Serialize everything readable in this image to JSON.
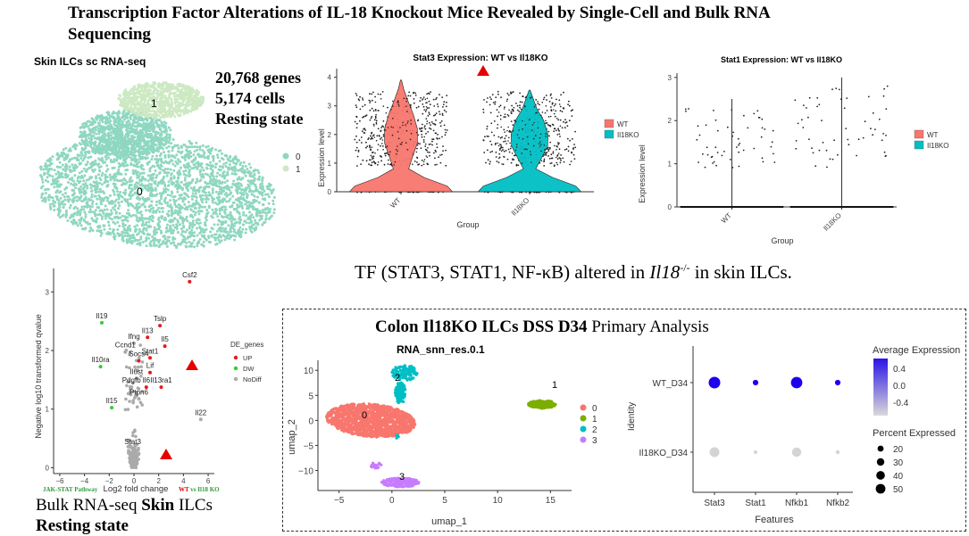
{
  "title": "Transcription Factor Alterations of IL-18 Knockout Mice Revealed by Single-Cell and Bulk RNA Sequencing",
  "umap_skin": {
    "title": "Skin ILCs sc RNA-seq",
    "cluster_labels": [
      "0",
      "1"
    ],
    "legend": [
      "0",
      "1"
    ],
    "colors": [
      "#8fd7c0",
      "#cce9c2"
    ]
  },
  "stats": {
    "genes": "20,768 genes",
    "cells": "5,174 cells",
    "state": "Resting state"
  },
  "tf_caption": {
    "prefix": "TF (STAT3, STAT1, NF-κB) altered in ",
    "gene": "Il18",
    "sup": "-/-",
    "suffix": " in skin ILCs."
  },
  "bulk_caption": {
    "line1_a": "Bulk RNA-seq ",
    "line1_b": "Skin",
    "line1_c": " ILCs",
    "line2": "Resting state"
  },
  "colon": {
    "title_bold": "Colon Il18KO ILCs DSS D34",
    "title_rest": " Primary Analysis"
  },
  "chart_data": [
    {
      "type": "violin",
      "title": "Stat3 Expression: WT vs Il18KO",
      "xlabel": "Group",
      "ylabel": "Expression level",
      "categories": [
        "WT",
        "Il18KO"
      ],
      "yticks": [
        "0",
        "1",
        "2",
        "3",
        "4"
      ],
      "ylim": [
        0,
        4.3
      ],
      "series": [
        {
          "name": "WT",
          "color": "#f8766d"
        },
        {
          "name": "Il18KO",
          "color": "#00bfc4"
        }
      ],
      "legend": [
        "WT",
        "Il18KO"
      ]
    },
    {
      "type": "violin",
      "title": "Stat1 Expression: WT vs Il18KO",
      "xlabel": "Group",
      "ylabel": "Expression level",
      "categories": [
        "WT",
        "Il18KO"
      ],
      "yticks": [
        "0",
        "1",
        "2",
        "3"
      ],
      "ylim": [
        0,
        3.1
      ],
      "series": [
        {
          "name": "WT",
          "color": "#f8766d"
        },
        {
          "name": "Il18KO",
          "color": "#00bfc4"
        }
      ],
      "legend": [
        "WT",
        "Il18KO"
      ]
    },
    {
      "type": "scatter",
      "name": "volcano",
      "xlabel": "Log2 fold change",
      "ylabel": "Negative log10 transformed qvalue",
      "xticks": [
        -6,
        -4,
        -2,
        0,
        2,
        4,
        6
      ],
      "yticks": [
        0,
        1,
        2,
        3
      ],
      "xlim": [
        -6.5,
        6.5
      ],
      "ylim": [
        -0.1,
        3.4
      ],
      "legend_title": "DE_genes",
      "legend": [
        {
          "name": "UP",
          "color": "#e41a1c"
        },
        {
          "name": "DW",
          "color": "#33cc33"
        },
        {
          "name": "NoDiff",
          "color": "#aaaaaa"
        }
      ],
      "labels": [
        {
          "text": "Csf2",
          "x": 4.5,
          "y": 3.25
        },
        {
          "text": "Il19",
          "x": -2.6,
          "y": 2.55
        },
        {
          "text": "Tslp",
          "x": 2.1,
          "y": 2.5
        },
        {
          "text": "Il13",
          "x": 1.1,
          "y": 2.3
        },
        {
          "text": "Il5",
          "x": 2.5,
          "y": 2.15
        },
        {
          "text": "Ifng",
          "x": 0.0,
          "y": 2.2
        },
        {
          "text": "Ccnd1",
          "x": -0.7,
          "y": 2.05
        },
        {
          "text": "Socs4",
          "x": 0.4,
          "y": 1.9
        },
        {
          "text": "Stat1",
          "x": 1.3,
          "y": 1.95
        },
        {
          "text": "Il10ra",
          "x": -2.7,
          "y": 1.8
        },
        {
          "text": "Lif",
          "x": 1.3,
          "y": 1.7
        },
        {
          "text": "Il6st",
          "x": 0.2,
          "y": 1.6
        },
        {
          "text": "Pdgfb",
          "x": -0.2,
          "y": 1.45
        },
        {
          "text": "Il6",
          "x": 1.0,
          "y": 1.45
        },
        {
          "text": "Il13ra1",
          "x": 2.2,
          "y": 1.45
        },
        {
          "text": "Ptpn6",
          "x": 0.4,
          "y": 1.25
        },
        {
          "text": "Il15",
          "x": -1.8,
          "y": 1.1
        },
        {
          "text": "Il22",
          "x": 5.4,
          "y": 0.9
        },
        {
          "text": "Stat3",
          "x": -0.1,
          "y": 0.4
        }
      ],
      "footer_left": "JAK-STAT Pathway",
      "footer_right_a": "WT",
      "footer_right_b": " vs Il18 KO"
    },
    {
      "type": "scatter",
      "name": "umap_colon",
      "title": "RNA_snn_res.0.1",
      "xlabel": "umap_1",
      "ylabel": "umap_2",
      "xticks": [
        -5,
        0,
        5,
        10,
        15
      ],
      "yticks": [
        -10,
        -5,
        0,
        5,
        10
      ],
      "xlim": [
        -7,
        17
      ],
      "ylim": [
        -14,
        12
      ],
      "cluster_labels": [
        "0",
        "1",
        "2",
        "3"
      ],
      "legend": [
        {
          "name": "0",
          "color": "#f8766d"
        },
        {
          "name": "1",
          "color": "#7cae00"
        },
        {
          "name": "2",
          "color": "#00bfc4"
        },
        {
          "name": "3",
          "color": "#c77cff"
        }
      ]
    },
    {
      "type": "dotplot",
      "xlabel": "Features",
      "ylabel": "Identity",
      "features": [
        "Stat3",
        "Stat1",
        "Nfkb1",
        "Nfkb2"
      ],
      "identities": [
        "WT_D34",
        "Il18KO_D34"
      ],
      "color_legend_title": "Average Expression",
      "color_ticks": [
        "0.4",
        "0.0",
        "-0.4"
      ],
      "size_legend_title": "Percent Expressed",
      "size_ticks": [
        "20",
        "30",
        "40",
        "50"
      ],
      "values": [
        {
          "identity": "WT_D34",
          "feature": "Stat3",
          "pct": 52,
          "avg": 0.7
        },
        {
          "identity": "WT_D34",
          "feature": "Stat1",
          "pct": 12,
          "avg": 0.7
        },
        {
          "identity": "WT_D34",
          "feature": "Nfkb1",
          "pct": 50,
          "avg": 0.7
        },
        {
          "identity": "WT_D34",
          "feature": "Nfkb2",
          "pct": 12,
          "avg": 0.7
        },
        {
          "identity": "Il18KO_D34",
          "feature": "Stat3",
          "pct": 38,
          "avg": -0.7
        },
        {
          "identity": "Il18KO_D34",
          "feature": "Stat1",
          "pct": 5,
          "avg": -0.7
        },
        {
          "identity": "Il18KO_D34",
          "feature": "Nfkb1",
          "pct": 33,
          "avg": -0.7
        },
        {
          "identity": "Il18KO_D34",
          "feature": "Nfkb2",
          "pct": 6,
          "avg": -0.7
        }
      ]
    }
  ]
}
